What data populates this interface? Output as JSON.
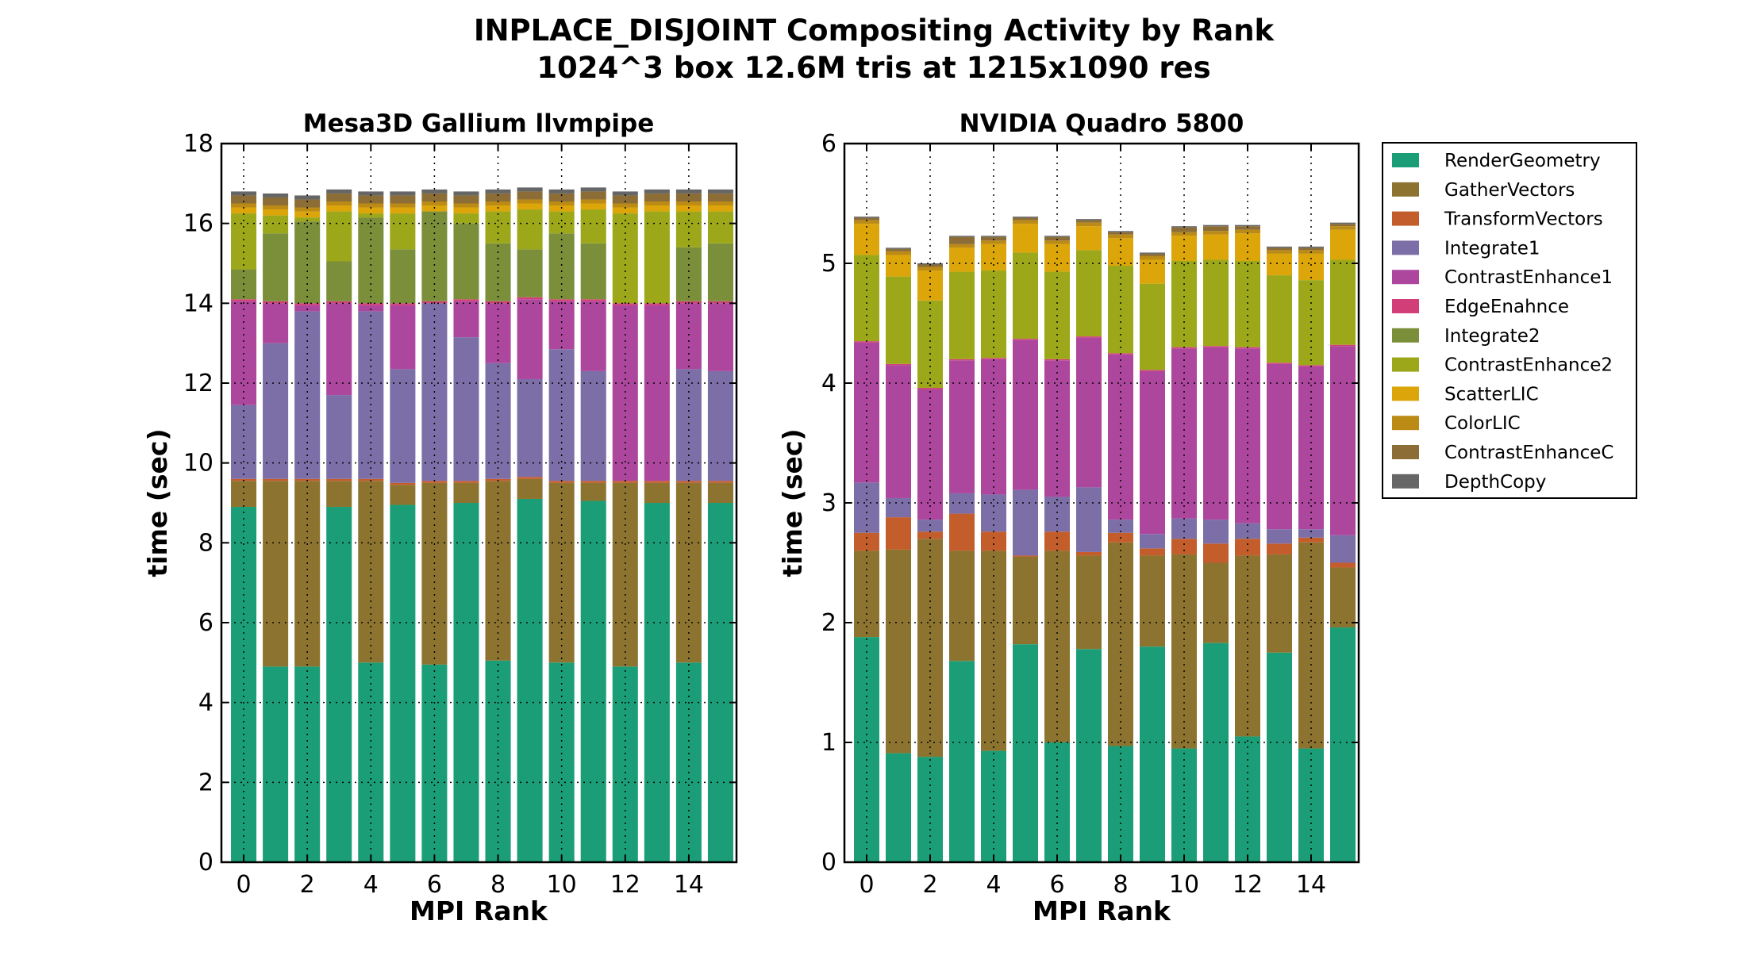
{
  "figure": {
    "title_line1": "INPLACE_DISJOINT Compositing Activity by Rank",
    "title_line2": "1024^3 box 12.6M tris at 1215x1090 res"
  },
  "legend": {
    "placement": "outside right, top",
    "entries": [
      "RenderGeometry",
      "GatherVectors",
      "TransformVectors",
      "Integrate1",
      "ContrastEnhance1",
      "EdgeEnahnce",
      "Integrate2",
      "ContrastEnhance2",
      "ScatterLIC",
      "ColorLIC",
      "ContrastEnhanceC",
      "DepthCopy"
    ]
  },
  "colors": {
    "RenderGeometry": "#1b9e77",
    "GatherVectors": "#8c7430",
    "TransformVectors": "#c35d2b",
    "Integrate1": "#7c6ea6",
    "ContrastEnhance1": "#ad479e",
    "EdgeEnahnce": "#d23f78",
    "Integrate2": "#7b8e39",
    "ContrastEnhance2": "#9ca81a",
    "ScatterLIC": "#dca509",
    "ColorLIC": "#bb8b15",
    "ContrastEnhanceC": "#8c6d35",
    "DepthCopy": "#666666"
  },
  "chart_data": [
    {
      "type": "bar",
      "stacked": true,
      "title": "Mesa3D Gallium llvmpipe",
      "xlabel": "MPI Rank",
      "ylabel": "time (sec)",
      "ylim": [
        0,
        18
      ],
      "yticks": [
        "0",
        "2",
        "4",
        "6",
        "8",
        "10",
        "12",
        "14",
        "16",
        "18"
      ],
      "xticks": [
        "0",
        "2",
        "4",
        "6",
        "8",
        "10",
        "12",
        "14"
      ],
      "xlim": [
        -0.7,
        15.5
      ],
      "grid": "dotted",
      "categories": [
        0,
        1,
        2,
        3,
        4,
        5,
        6,
        7,
        8,
        9,
        10,
        11,
        12,
        13,
        14,
        15
      ],
      "series": [
        {
          "name": "RenderGeometry",
          "values": [
            8.9,
            4.9,
            4.9,
            8.9,
            5.0,
            8.95,
            4.95,
            9.0,
            5.05,
            9.1,
            5.0,
            9.05,
            4.9,
            9.0,
            5.0,
            9.0
          ]
        },
        {
          "name": "GatherVectors",
          "values": [
            0.65,
            4.65,
            4.65,
            0.65,
            4.55,
            0.5,
            4.55,
            0.5,
            4.5,
            0.5,
            4.5,
            0.45,
            4.6,
            0.5,
            4.5,
            0.5
          ]
        },
        {
          "name": "TransformVectors",
          "values": [
            0.05,
            0.05,
            0.05,
            0.05,
            0.05,
            0.05,
            0.05,
            0.05,
            0.05,
            0.05,
            0.05,
            0.05,
            0.05,
            0.05,
            0.05,
            0.05
          ]
        },
        {
          "name": "Integrate1",
          "values": [
            1.85,
            3.4,
            4.2,
            2.1,
            4.2,
            2.85,
            4.45,
            3.6,
            2.9,
            2.45,
            3.3,
            2.75,
            0.0,
            0.0,
            2.8,
            2.75
          ]
        },
        {
          "name": "ContrastEnhance1",
          "values": [
            2.6,
            1.0,
            0.15,
            2.3,
            0.15,
            1.6,
            0.0,
            0.9,
            1.5,
            2.0,
            1.2,
            1.75,
            4.4,
            4.4,
            1.65,
            1.7
          ]
        },
        {
          "name": "EdgeEnahnce",
          "values": [
            0.05,
            0.05,
            0.05,
            0.05,
            0.05,
            0.05,
            0.05,
            0.05,
            0.05,
            0.05,
            0.05,
            0.05,
            0.05,
            0.05,
            0.05,
            0.05
          ]
        },
        {
          "name": "Integrate2",
          "values": [
            0.75,
            1.7,
            2.05,
            1.0,
            2.15,
            1.35,
            2.25,
            1.9,
            1.45,
            1.2,
            1.65,
            1.4,
            0.0,
            0.0,
            1.35,
            1.45
          ]
        },
        {
          "name": "ContrastEnhance2",
          "values": [
            1.4,
            0.45,
            0.1,
            1.25,
            0.1,
            0.9,
            0.0,
            0.25,
            0.8,
            1.0,
            0.55,
            0.85,
            2.25,
            2.3,
            0.9,
            0.8
          ]
        },
        {
          "name": "ScatterLIC",
          "values": [
            0.15,
            0.15,
            0.15,
            0.15,
            0.15,
            0.15,
            0.15,
            0.15,
            0.15,
            0.15,
            0.15,
            0.15,
            0.15,
            0.15,
            0.15,
            0.15
          ]
        },
        {
          "name": "ColorLIC",
          "values": [
            0.1,
            0.1,
            0.1,
            0.1,
            0.1,
            0.1,
            0.1,
            0.1,
            0.1,
            0.1,
            0.1,
            0.1,
            0.1,
            0.1,
            0.1,
            0.1
          ]
        },
        {
          "name": "ContrastEnhanceC",
          "values": [
            0.2,
            0.2,
            0.2,
            0.2,
            0.2,
            0.2,
            0.2,
            0.2,
            0.2,
            0.2,
            0.2,
            0.2,
            0.2,
            0.2,
            0.2,
            0.2
          ]
        },
        {
          "name": "DepthCopy",
          "values": [
            0.1,
            0.1,
            0.1,
            0.1,
            0.1,
            0.1,
            0.1,
            0.1,
            0.1,
            0.1,
            0.1,
            0.1,
            0.1,
            0.1,
            0.1,
            0.1
          ]
        }
      ]
    },
    {
      "type": "bar",
      "stacked": true,
      "title": "NVIDIA Quadro 5800",
      "xlabel": "MPI Rank",
      "ylabel": "time (sec)",
      "ylim": [
        0,
        6
      ],
      "yticks": [
        "0",
        "1",
        "2",
        "3",
        "4",
        "5",
        "6"
      ],
      "xticks": [
        "0",
        "2",
        "4",
        "6",
        "8",
        "10",
        "12",
        "14"
      ],
      "xlim": [
        -0.7,
        15.5
      ],
      "grid": "dotted",
      "categories": [
        0,
        1,
        2,
        3,
        4,
        5,
        6,
        7,
        8,
        9,
        10,
        11,
        12,
        13,
        14,
        15
      ],
      "series": [
        {
          "name": "RenderGeometry",
          "values": [
            1.88,
            0.91,
            0.88,
            1.68,
            0.93,
            1.82,
            1.0,
            1.78,
            0.97,
            1.8,
            0.95,
            1.83,
            1.05,
            1.75,
            0.95,
            1.96
          ]
        },
        {
          "name": "GatherVectors",
          "values": [
            0.72,
            1.7,
            1.82,
            0.92,
            1.67,
            0.73,
            1.6,
            0.78,
            1.7,
            0.76,
            1.62,
            0.67,
            1.51,
            0.82,
            1.72,
            0.5
          ]
        },
        {
          "name": "TransformVectors",
          "values": [
            0.15,
            0.27,
            0.06,
            0.31,
            0.16,
            0.01,
            0.16,
            0.03,
            0.08,
            0.06,
            0.13,
            0.16,
            0.14,
            0.09,
            0.04,
            0.04
          ]
        },
        {
          "name": "Integrate1",
          "values": [
            0.42,
            0.16,
            0.1,
            0.17,
            0.31,
            0.55,
            0.29,
            0.54,
            0.11,
            0.12,
            0.17,
            0.2,
            0.13,
            0.12,
            0.07,
            0.23
          ]
        },
        {
          "name": "ContrastEnhance1",
          "values": [
            1.17,
            1.11,
            1.09,
            1.11,
            1.13,
            1.25,
            1.14,
            1.25,
            1.38,
            1.36,
            1.42,
            1.44,
            1.46,
            1.38,
            1.36,
            1.58
          ]
        },
        {
          "name": "EdgeEnahnce",
          "values": [
            0.01,
            0.01,
            0.01,
            0.01,
            0.01,
            0.01,
            0.01,
            0.01,
            0.01,
            0.01,
            0.01,
            0.01,
            0.01,
            0.01,
            0.01,
            0.01
          ]
        },
        {
          "name": "Integrate2",
          "values": [
            0.0,
            0.0,
            0.0,
            0.0,
            0.0,
            0.0,
            0.0,
            0.0,
            0.0,
            0.0,
            0.0,
            0.0,
            0.0,
            0.0,
            0.0,
            0.0
          ]
        },
        {
          "name": "ContrastEnhance2",
          "values": [
            0.72,
            0.73,
            0.73,
            0.73,
            0.73,
            0.72,
            0.73,
            0.72,
            0.73,
            0.72,
            0.72,
            0.72,
            0.72,
            0.73,
            0.71,
            0.71
          ]
        },
        {
          "name": "ScatterLIC",
          "values": [
            0.26,
            0.18,
            0.25,
            0.2,
            0.22,
            0.24,
            0.23,
            0.2,
            0.23,
            0.2,
            0.21,
            0.21,
            0.23,
            0.18,
            0.22,
            0.25
          ]
        },
        {
          "name": "ColorLIC",
          "values": [
            0.03,
            0.03,
            0.03,
            0.03,
            0.03,
            0.03,
            0.03,
            0.03,
            0.03,
            0.03,
            0.03,
            0.03,
            0.03,
            0.03,
            0.03,
            0.03
          ]
        },
        {
          "name": "ContrastEnhanceC",
          "values": [
            0.02,
            0.02,
            0.02,
            0.06,
            0.03,
            0.02,
            0.03,
            0.02,
            0.02,
            0.02,
            0.04,
            0.04,
            0.03,
            0.02,
            0.02,
            0.02
          ]
        },
        {
          "name": "DepthCopy",
          "values": [
            0.01,
            0.01,
            0.01,
            0.01,
            0.01,
            0.01,
            0.01,
            0.01,
            0.01,
            0.01,
            0.01,
            0.01,
            0.01,
            0.01,
            0.01,
            0.01
          ]
        }
      ]
    }
  ]
}
